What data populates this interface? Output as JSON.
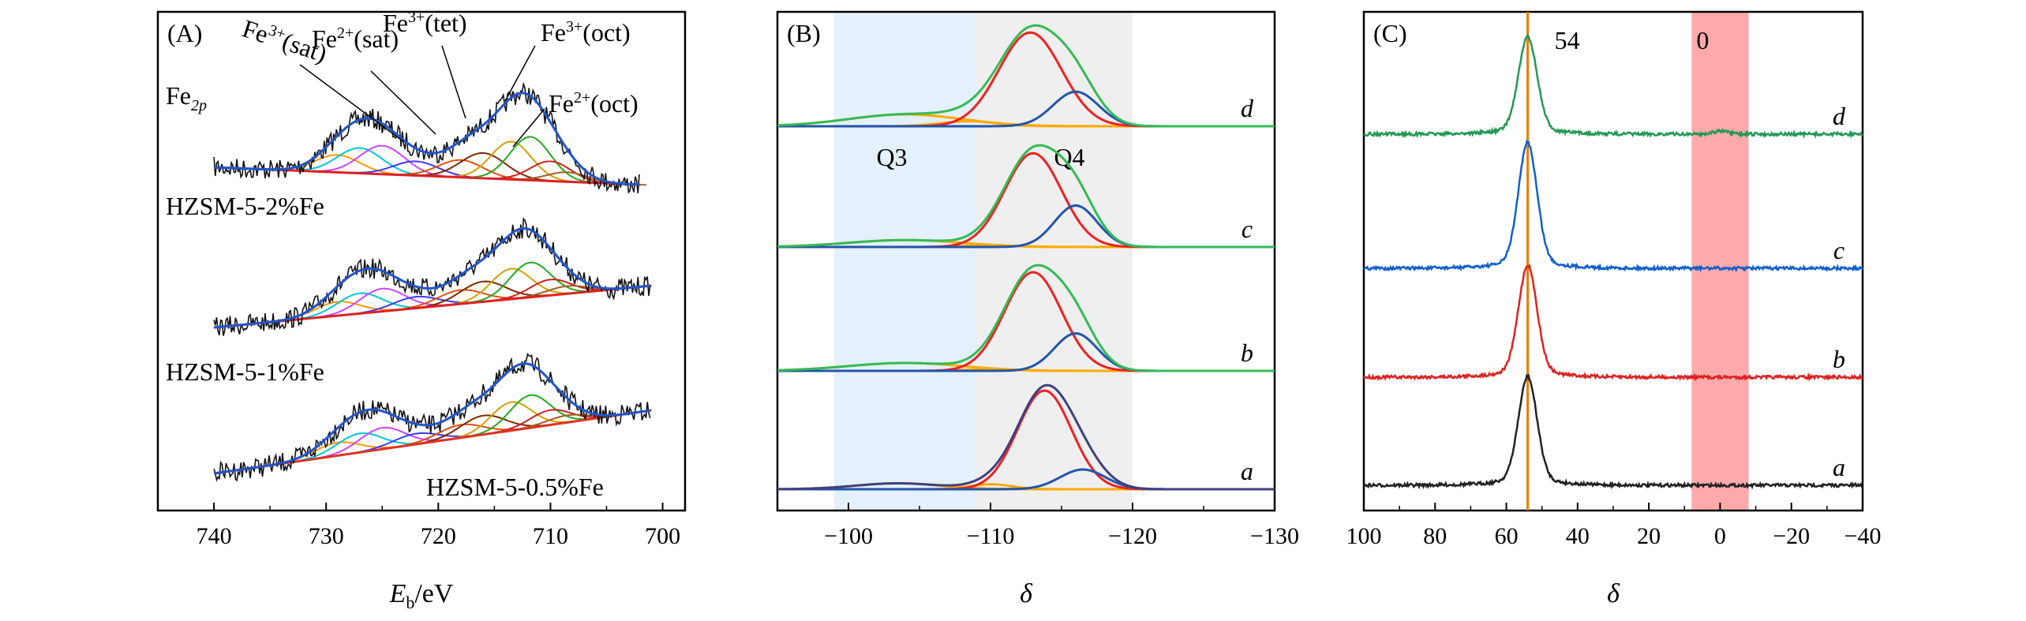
{
  "chart_data": [
    {
      "panel": "(A)",
      "type": "line",
      "xlabel_main": "E",
      "xlabel_sub": "b",
      "xlabel_unit": "/eV",
      "xlim": [
        745,
        698
      ],
      "ticks": [
        740,
        730,
        720,
        710,
        700
      ],
      "element_label_main": "Fe",
      "element_label_sub": "2p",
      "peak_labels": [
        {
          "main": "Fe",
          "sup": "3+",
          "tail": "(sat)",
          "x": 729
        },
        {
          "main": "Fe",
          "sup": "2+",
          "tail": "(sat)",
          "x": 718
        },
        {
          "main": "Fe",
          "sup": "3+",
          "tail": "(tet)",
          "x": 714
        },
        {
          "main": "Fe",
          "sup": "3+",
          "tail": "(oct)",
          "x": 711
        },
        {
          "main": "Fe",
          "sup": "2+",
          "tail": "(oct)",
          "x": 709
        }
      ],
      "series": [
        {
          "name": "HZSM-5-2%Fe",
          "offset": 2.0,
          "scale": 1.0
        },
        {
          "name": "HZSM-5-1%Fe",
          "offset": 1.0,
          "scale": 0.8
        },
        {
          "name": "HZSM-5-0.5%Fe",
          "offset": 0.0,
          "scale": 0.75
        }
      ],
      "components": [
        {
          "center": 729.0,
          "width": 2.0,
          "height": 0.22,
          "color": "#ff9900"
        },
        {
          "center": 727.0,
          "width": 2.0,
          "height": 0.32,
          "color": "#00c8d8"
        },
        {
          "center": 725.0,
          "width": 2.0,
          "height": 0.36,
          "color": "#cc44ff"
        },
        {
          "center": 722.0,
          "width": 2.0,
          "height": 0.18,
          "color": "#3b3bff"
        },
        {
          "center": 718.0,
          "width": 2.0,
          "height": 0.22,
          "color": "#e05010"
        },
        {
          "center": 716.0,
          "width": 2.0,
          "height": 0.32,
          "color": "#7b2a00"
        },
        {
          "center": 713.5,
          "width": 1.8,
          "height": 0.48,
          "color": "#d4a000"
        },
        {
          "center": 711.8,
          "width": 1.8,
          "height": 0.55,
          "color": "#22aa22"
        },
        {
          "center": 710.0,
          "width": 1.8,
          "height": 0.25,
          "color": "#cc2222"
        },
        {
          "center": 708.5,
          "width": 1.8,
          "height": 0.12,
          "color": "#a06020"
        }
      ]
    },
    {
      "panel": "(B)",
      "type": "line",
      "xlabel": "δ",
      "xlim": [
        -95,
        -130
      ],
      "ticks": [
        -100,
        -110,
        -120,
        -130
      ],
      "regions": [
        {
          "from": -99,
          "to": -109,
          "color": "#e4f0fb",
          "label": "Q3"
        },
        {
          "from": -109,
          "to": -120,
          "color": "#efefef",
          "label": "Q4"
        }
      ],
      "series": [
        {
          "name": "a",
          "offset": 0.0,
          "q3": {
            "center": -103.5,
            "width": 3.0,
            "height": 0.06
          },
          "q4a": {
            "center": -113.8,
            "width": 1.9,
            "height": 1.0
          },
          "q4b": {
            "center": -116.5,
            "width": 1.6,
            "height": 0.2
          },
          "q3b": {
            "center": -110.0,
            "width": 1.5,
            "height": 0.05
          },
          "total_color": "#404080"
        },
        {
          "name": "b",
          "offset": 1.0,
          "q3": {
            "center": -104.0,
            "width": 4.0,
            "height": 0.08
          },
          "q4a": {
            "center": -113.0,
            "width": 2.0,
            "height": 1.0
          },
          "q4b": {
            "center": -116.0,
            "width": 1.5,
            "height": 0.38
          },
          "q3b": {
            "center": -110.0,
            "width": 1.5,
            "height": 0.02
          },
          "total_color": "#33bb55"
        },
        {
          "name": "c",
          "offset": 2.0,
          "q3": {
            "center": -104.0,
            "width": 4.0,
            "height": 0.07
          },
          "q4a": {
            "center": -113.0,
            "width": 2.0,
            "height": 0.95
          },
          "q4b": {
            "center": -116.0,
            "width": 1.5,
            "height": 0.42
          },
          "q3b": {
            "center": -110.0,
            "width": 1.5,
            "height": 0.02
          },
          "total_color": "#33bb55"
        },
        {
          "name": "d",
          "offset": 3.0,
          "q3": {
            "center": -104.0,
            "width": 4.0,
            "height": 0.12
          },
          "q4a": {
            "center": -112.8,
            "width": 2.2,
            "height": 0.95
          },
          "q4b": {
            "center": -116.0,
            "width": 1.6,
            "height": 0.35
          },
          "q3b": {
            "center": -108.5,
            "width": 2.0,
            "height": 0.05
          },
          "total_color": "#33bb55"
        }
      ]
    },
    {
      "panel": "(C)",
      "type": "line",
      "xlabel": "δ",
      "xlim": [
        100,
        -40
      ],
      "ticks": [
        100,
        80,
        60,
        40,
        20,
        0,
        -20,
        -40
      ],
      "marker_line": {
        "x": 54,
        "label": "54",
        "color": "#e87a00"
      },
      "band": {
        "from": 8,
        "to": -8,
        "label": "0",
        "color": "#ffaaaa"
      },
      "series": [
        {
          "name": "a",
          "offset": 0.0,
          "color": "#222222",
          "peak": 54,
          "height": 0.95,
          "small": 0.0
        },
        {
          "name": "b",
          "offset": 1.0,
          "color": "#dd2222",
          "peak": 54,
          "height": 0.98,
          "small": 0.0
        },
        {
          "name": "c",
          "offset": 2.0,
          "color": "#1060cc",
          "peak": 54,
          "height": 1.1,
          "small": 0.0
        },
        {
          "name": "d",
          "offset": 3.2,
          "color": "#229955",
          "peak": 54,
          "height": 0.85,
          "small": 0.03
        }
      ]
    }
  ]
}
